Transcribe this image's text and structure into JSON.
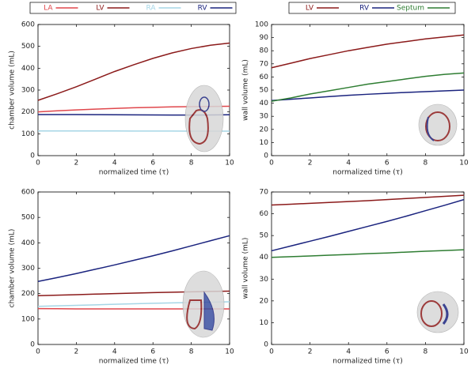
{
  "chart_data": [
    {
      "type": "line",
      "xlabel": "normalized time (τ)",
      "ylabel": "chamber volume (mL)",
      "x": [
        0,
        1,
        2,
        3,
        4,
        5,
        6,
        7,
        8,
        9,
        10
      ],
      "xlim": [
        0,
        10
      ],
      "xticks": [
        0,
        2,
        4,
        6,
        8,
        10
      ],
      "ylim": [
        0,
        600
      ],
      "yticks": [
        0,
        100,
        200,
        300,
        400,
        500,
        600
      ],
      "legend": "top",
      "series": [
        {
          "name": "LA",
          "color": "#e0474c",
          "values": [
            200,
            205,
            209,
            213,
            216,
            219,
            221,
            223,
            224,
            225,
            226
          ]
        },
        {
          "name": "LV",
          "color": "#8b1a1a",
          "values": [
            253,
            283,
            315,
            350,
            385,
            416,
            445,
            470,
            490,
            505,
            515
          ]
        },
        {
          "name": "RA",
          "color": "#a6d6e6",
          "values": [
            113,
            113,
            113,
            113,
            113,
            112.5,
            112.5,
            112.5,
            112,
            112,
            112
          ]
        },
        {
          "name": "RV",
          "color": "#1a237e",
          "values": [
            188,
            188,
            188,
            187.5,
            187,
            186.5,
            186,
            185.5,
            185.5,
            186,
            187
          ]
        }
      ]
    },
    {
      "type": "line",
      "xlabel": "normalized time (τ)",
      "ylabel": "wall volume (mL)",
      "x": [
        0,
        1,
        2,
        3,
        4,
        5,
        6,
        7,
        8,
        9,
        10
      ],
      "xlim": [
        0,
        10
      ],
      "xticks": [
        0,
        2,
        4,
        6,
        8,
        10
      ],
      "ylim": [
        0,
        100
      ],
      "yticks": [
        0,
        10,
        20,
        30,
        40,
        50,
        60,
        70,
        80,
        90,
        100
      ],
      "legend": "top",
      "series": [
        {
          "name": "LV",
          "color": "#8b1a1a",
          "values": [
            67,
            70.5,
            74,
            77,
            80,
            82.5,
            85,
            87,
            89,
            90.5,
            92
          ]
        },
        {
          "name": "RV",
          "color": "#1a237e",
          "values": [
            42,
            43,
            44,
            45,
            46,
            46.8,
            47.5,
            48.2,
            48.8,
            49.4,
            50
          ]
        },
        {
          "name": "Septum",
          "color": "#2e7d32",
          "values": [
            41.5,
            44,
            47,
            49.5,
            52,
            54.5,
            56.5,
            58.5,
            60.5,
            62,
            63
          ]
        }
      ]
    },
    {
      "type": "line",
      "xlabel": "normalized time (τ)",
      "ylabel": "chamber volume (mL)",
      "x": [
        0,
        1,
        2,
        3,
        4,
        5,
        6,
        7,
        8,
        9,
        10
      ],
      "xlim": [
        0,
        10
      ],
      "xticks": [
        0,
        2,
        4,
        6,
        8,
        10
      ],
      "ylim": [
        0,
        600
      ],
      "yticks": [
        0,
        100,
        200,
        300,
        400,
        500,
        600
      ],
      "series": [
        {
          "color": "#e0474c",
          "values": [
            141,
            140.5,
            140,
            140,
            140,
            140,
            140,
            140,
            140,
            140,
            140
          ]
        },
        {
          "color": "#8b1a1a",
          "values": [
            192,
            194,
            196,
            198,
            200,
            202,
            204,
            205.5,
            207,
            208.5,
            210
          ]
        },
        {
          "color": "#a6d6e6",
          "values": [
            150,
            152,
            154,
            156,
            158,
            160,
            162,
            163.5,
            165,
            166.5,
            168
          ]
        },
        {
          "color": "#1a237e",
          "values": [
            248,
            263,
            279,
            296,
            313,
            331,
            349,
            368,
            388,
            408,
            428
          ]
        }
      ]
    },
    {
      "type": "line",
      "xlabel": "normalized time (τ)",
      "ylabel": "wall volume (mL)",
      "x": [
        0,
        1,
        2,
        3,
        4,
        5,
        6,
        7,
        8,
        9,
        10
      ],
      "xlim": [
        0,
        10
      ],
      "xticks": [
        0,
        2,
        4,
        6,
        8,
        10
      ],
      "ylim": [
        0,
        70
      ],
      "yticks": [
        0,
        10,
        20,
        30,
        40,
        50,
        60,
        70
      ],
      "series": [
        {
          "color": "#8b1a1a",
          "values": [
            64,
            64.4,
            64.8,
            65.2,
            65.6,
            66,
            66.5,
            67,
            67.5,
            68,
            68.5
          ]
        },
        {
          "color": "#1a237e",
          "values": [
            43,
            45.2,
            47.4,
            49.6,
            51.9,
            54.2,
            56.5,
            58.9,
            61.4,
            63.9,
            66.5
          ]
        },
        {
          "color": "#2e7d32",
          "values": [
            40,
            40.3,
            40.6,
            41,
            41.3,
            41.7,
            42,
            42.4,
            42.8,
            43.1,
            43.5
          ]
        }
      ]
    }
  ]
}
